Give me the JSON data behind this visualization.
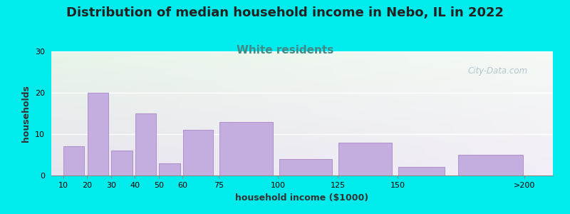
{
  "title": "Distribution of median household income in Nebo, IL in 2022",
  "subtitle": "White residents",
  "xlabel": "household income ($1000)",
  "ylabel": "households",
  "categories": [
    "10",
    "20",
    "30",
    "40",
    "50",
    "60",
    "75",
    "100",
    "125",
    "150",
    ">200"
  ],
  "values": [
    7,
    20,
    6,
    15,
    3,
    11,
    13,
    4,
    8,
    2,
    5
  ],
  "bar_color": "#c4aee0",
  "bar_edge_color": "#b090cc",
  "ylim": [
    0,
    30
  ],
  "yticks": [
    0,
    10,
    20,
    30
  ],
  "background_outer": "#00ecec",
  "bg_top_left": "#e8f5e8",
  "bg_bottom_right": "#e8e4f0",
  "title_fontsize": 13,
  "subtitle_fontsize": 11,
  "title_color": "#222222",
  "subtitle_color": "#448888",
  "watermark_text": "City-Data.com",
  "watermark_color": "#aabbcc",
  "x_positions": [
    10,
    20,
    30,
    40,
    50,
    60,
    75,
    100,
    125,
    150,
    175
  ],
  "bar_widths": [
    9,
    9,
    9,
    9,
    9,
    13,
    23,
    23,
    23,
    20,
    28
  ]
}
